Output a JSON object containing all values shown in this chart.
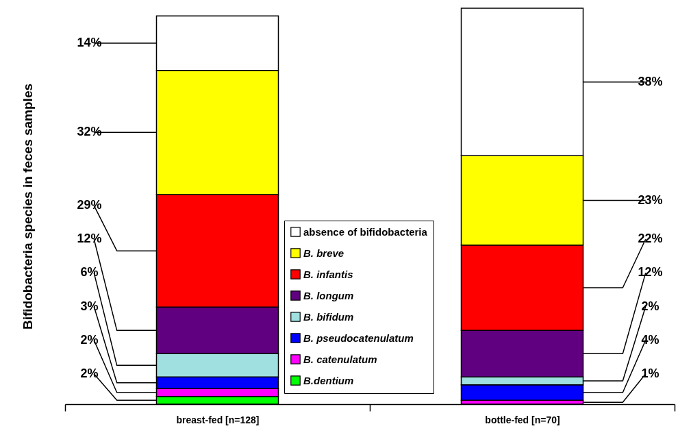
{
  "chart_data": {
    "type": "bar",
    "ylabel": "Bifidobacteria species in feces samples",
    "categories": [
      "breast-fed [n=128]",
      "bottle-fed [n=70]"
    ],
    "stacked": true,
    "legend": "bottom",
    "series": [
      {
        "name": "B.dentium",
        "color": "#00ff00",
        "values": [
          2,
          null
        ],
        "value_labels": [
          "2%",
          null
        ]
      },
      {
        "name": "B. catenulatum",
        "color": "#ff00ff",
        "values": [
          2,
          1
        ],
        "value_labels": [
          "2%",
          "1%"
        ]
      },
      {
        "name": "B. pseudocatenulatum",
        "color": "#0000ff",
        "values": [
          3,
          4
        ],
        "value_labels": [
          "3%",
          "4%"
        ]
      },
      {
        "name": "B. bifidum",
        "color": "#a0e0e0",
        "values": [
          6,
          2
        ],
        "value_labels": [
          "6%",
          "2%"
        ]
      },
      {
        "name": "B. longum",
        "color": "#600080",
        "values": [
          12,
          12
        ],
        "value_labels": [
          "12%",
          "12%"
        ]
      },
      {
        "name": "B. infantis",
        "color": "#ff0000",
        "values": [
          29,
          22
        ],
        "value_labels": [
          "29%",
          "22%"
        ]
      },
      {
        "name": "B. breve",
        "color": "#ffff00",
        "values": [
          32,
          23
        ],
        "value_labels": [
          "32%",
          "23%"
        ]
      },
      {
        "name": "absence of bifidobacteria",
        "color": "#ffffff",
        "values": [
          14,
          38
        ],
        "value_labels": [
          "14%",
          "38%"
        ]
      }
    ]
  }
}
